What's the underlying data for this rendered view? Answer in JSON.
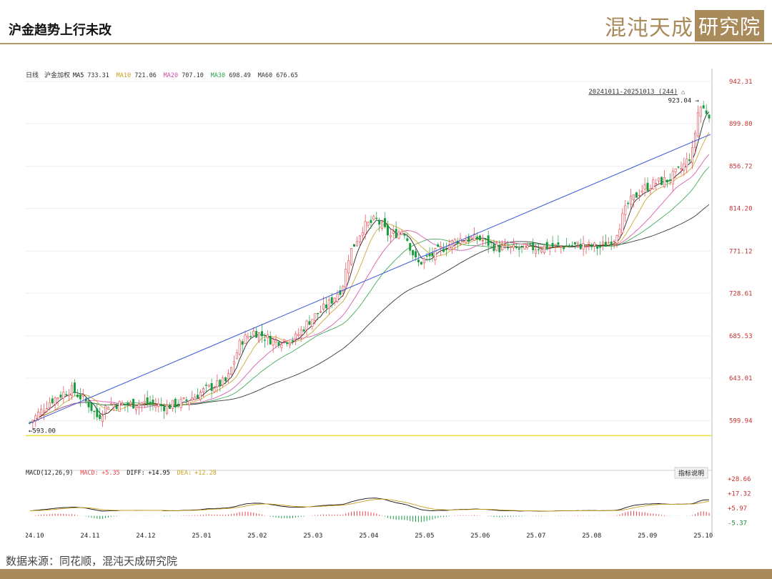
{
  "header": {
    "title": "沪金趋势上行未改",
    "logo_main": "混沌天成",
    "logo_box": "研究院"
  },
  "source": "数据来源：同花顺，混沌天成研究院",
  "colors": {
    "up": "#e8414a",
    "down": "#169c3d",
    "ma5": "#111111",
    "ma10": "#c8a020",
    "ma20": "#d04ca8",
    "ma30": "#2fa24a",
    "ma60": "#222222",
    "trendline": "#3656d6",
    "support": "#e6e23a",
    "accent": "#a98a5a"
  },
  "chart_data": [
    {
      "type": "candlestick",
      "legend": {
        "period": "日线",
        "name": "沪金加权",
        "items": [
          {
            "label": "MA5",
            "value": "733.31",
            "color": "#111111"
          },
          {
            "label": "MA10",
            "value": "721.06",
            "color": "#c8a020"
          },
          {
            "label": "MA20",
            "value": "707.10",
            "color": "#d04ca8"
          },
          {
            "label": "MA30",
            "value": "698.49",
            "color": "#2fa24a"
          },
          {
            "label": "MA60",
            "value": "676.65",
            "color": "#222222"
          }
        ]
      },
      "range_label": "20241011-20251013 (244)",
      "y_ticks": [
        "942.31",
        "899.80",
        "856.72",
        "814.20",
        "771.12",
        "728.61",
        "685.53",
        "643.01",
        "599.94"
      ],
      "ylim": [
        560,
        942.31
      ],
      "x_ticks": [
        "24.10",
        "24.11",
        "24.12",
        "25.01",
        "25.02",
        "25.03",
        "25.04",
        "25.05",
        "25.06",
        "25.07",
        "25.08",
        "25.09",
        "25.10"
      ],
      "annotations": {
        "high": "923.04",
        "low": "593.00"
      },
      "support_level": 585,
      "trendline": {
        "from": [
          0,
          597
        ],
        "to": [
          1,
          889
        ]
      },
      "close_anchors": [
        [
          0,
          598
        ],
        [
          0.03,
          620
        ],
        [
          0.06,
          632
        ],
        [
          0.085,
          618
        ],
        [
          0.1,
          603
        ],
        [
          0.115,
          617
        ],
        [
          0.14,
          616
        ],
        [
          0.17,
          618
        ],
        [
          0.2,
          614
        ],
        [
          0.23,
          620
        ],
        [
          0.26,
          632
        ],
        [
          0.29,
          640
        ],
        [
          0.31,
          680
        ],
        [
          0.33,
          690
        ],
        [
          0.36,
          680
        ],
        [
          0.39,
          683
        ],
        [
          0.41,
          700
        ],
        [
          0.44,
          718
        ],
        [
          0.46,
          735
        ],
        [
          0.47,
          768
        ],
        [
          0.49,
          795
        ],
        [
          0.51,
          803
        ],
        [
          0.53,
          786
        ],
        [
          0.55,
          793
        ],
        [
          0.57,
          758
        ],
        [
          0.59,
          766
        ],
        [
          0.61,
          775
        ],
        [
          0.63,
          783
        ],
        [
          0.66,
          784
        ],
        [
          0.69,
          774
        ],
        [
          0.72,
          773
        ],
        [
          0.75,
          775
        ],
        [
          0.78,
          776
        ],
        [
          0.81,
          777
        ],
        [
          0.84,
          775
        ],
        [
          0.86,
          784
        ],
        [
          0.88,
          818
        ],
        [
          0.9,
          833
        ],
        [
          0.92,
          840
        ],
        [
          0.94,
          843
        ],
        [
          0.96,
          855
        ],
        [
          0.975,
          870
        ],
        [
          0.985,
          918
        ],
        [
          1,
          910
        ]
      ]
    },
    {
      "type": "macd",
      "label": "MACD(12,26,9)",
      "items": [
        {
          "label": "MACD:",
          "value": "+5.35",
          "color": "#e8414a"
        },
        {
          "label": "DIFF:",
          "value": "+14.95",
          "color": "#111111"
        },
        {
          "label": "DEA:",
          "value": "+12.28",
          "color": "#c8a020"
        }
      ],
      "button": "指标说明",
      "y_ticks": [
        "+28.66",
        "+17.32",
        "+5.97",
        "-5.37"
      ],
      "ylim": [
        -8,
        31
      ]
    }
  ]
}
